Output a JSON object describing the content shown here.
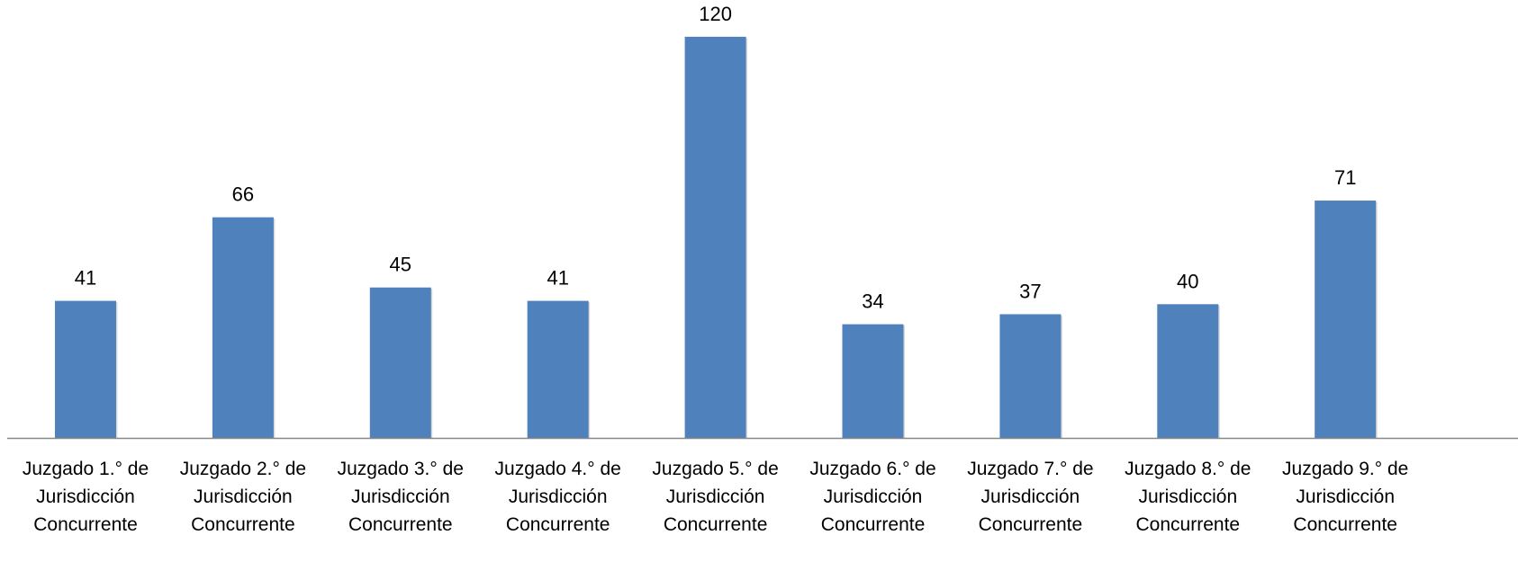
{
  "chart_data": {
    "type": "bar",
    "title": "",
    "xlabel": "",
    "ylabel": "",
    "categories": [
      [
        "Juzgado 1.° de",
        "Jurisdicción",
        "Concurrente"
      ],
      [
        "Juzgado 2.° de",
        "Jurisdicción",
        "Concurrente"
      ],
      [
        "Juzgado 3.° de",
        "Jurisdicción",
        "Concurrente"
      ],
      [
        "Juzgado 4.° de",
        "Jurisdicción",
        "Concurrente"
      ],
      [
        "Juzgado 5.° de",
        "Jurisdicción",
        "Concurrente"
      ],
      [
        "Juzgado 6.° de",
        "Jurisdicción",
        "Concurrente"
      ],
      [
        "Juzgado 7.° de",
        "Jurisdicción",
        "Concurrente"
      ],
      [
        "Juzgado 8.° de",
        "Jurisdicción",
        "Concurrente"
      ],
      [
        "Juzgado 9.° de",
        "Jurisdicción",
        "Concurrente"
      ]
    ],
    "values": [
      41,
      66,
      45,
      41,
      120,
      34,
      37,
      40,
      71
    ],
    "data_labels": [
      "41",
      "66",
      "45",
      "41",
      "120",
      "34",
      "37",
      "40",
      "71"
    ],
    "ylim": [
      0,
      131
    ],
    "grid": false,
    "legend": "none",
    "colors": {
      "bar": "#4F81BD",
      "axis": "#888888",
      "text": "#000000"
    }
  }
}
